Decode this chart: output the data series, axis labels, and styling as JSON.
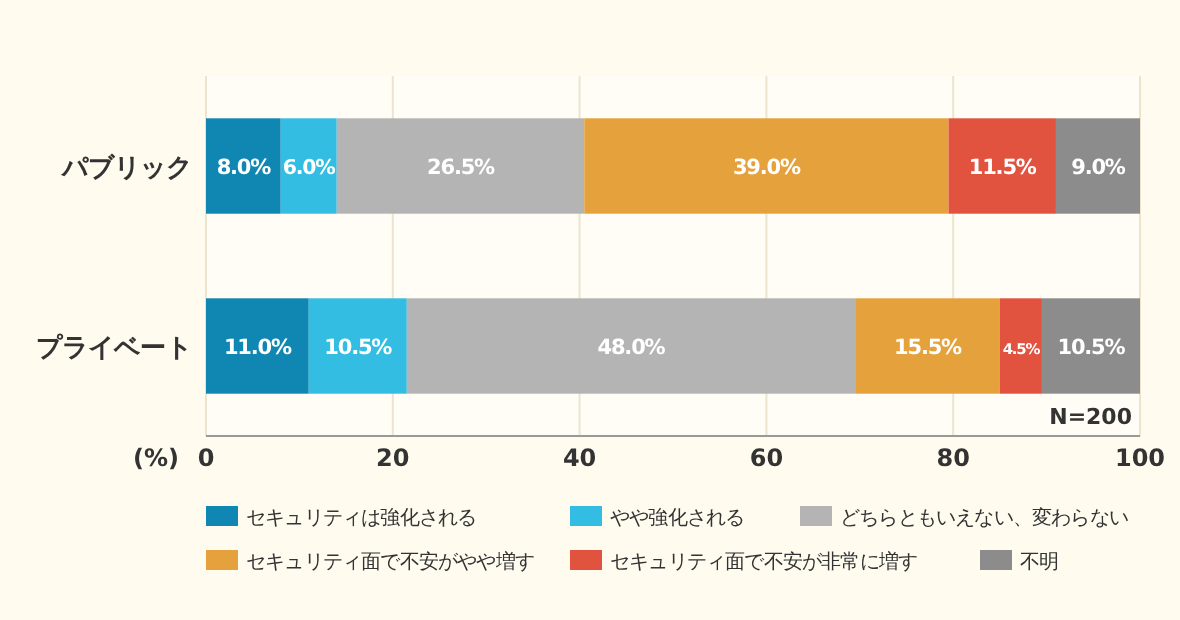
{
  "chart_data": {
    "type": "bar",
    "orientation": "horizontal",
    "stacked": true,
    "categories": [
      "パブリック",
      "プライベート"
    ],
    "series": [
      {
        "name": "セキュリティは強化される",
        "color": "#0f87b2",
        "values": [
          8.0,
          11.0
        ],
        "value_labels": [
          "8.0%",
          "11.0%"
        ]
      },
      {
        "name": "やや強化される",
        "color": "#33bde3",
        "values": [
          6.0,
          10.5
        ],
        "value_labels": [
          "6.0%",
          "10.5%"
        ]
      },
      {
        "name": "どちらともいえない、変わらない",
        "color": "#b4b4b4",
        "values": [
          26.5,
          48.0
        ],
        "value_labels": [
          "26.5%",
          "48.0%"
        ]
      },
      {
        "name": "セキュリティ面で不安がやや増す",
        "color": "#e5a23c",
        "values": [
          39.0,
          15.5
        ],
        "value_labels": [
          "39.0%",
          "15.5%"
        ]
      },
      {
        "name": "セキュリティ面で不安が非常に増す",
        "color": "#e2533f",
        "values": [
          11.5,
          4.5
        ],
        "value_labels": [
          "11.5%",
          "4.5%"
        ]
      },
      {
        "name": "不明",
        "color": "#8c8c8c",
        "values": [
          9.0,
          10.5
        ],
        "value_labels": [
          "9.0%",
          "10.5%"
        ]
      }
    ],
    "xlim": [
      0,
      100
    ],
    "xticks": [
      0,
      20,
      40,
      60,
      80,
      100
    ],
    "xlabel": "(%)",
    "grid": "x",
    "legend": "bottom",
    "annotations": [
      "N=200"
    ]
  }
}
